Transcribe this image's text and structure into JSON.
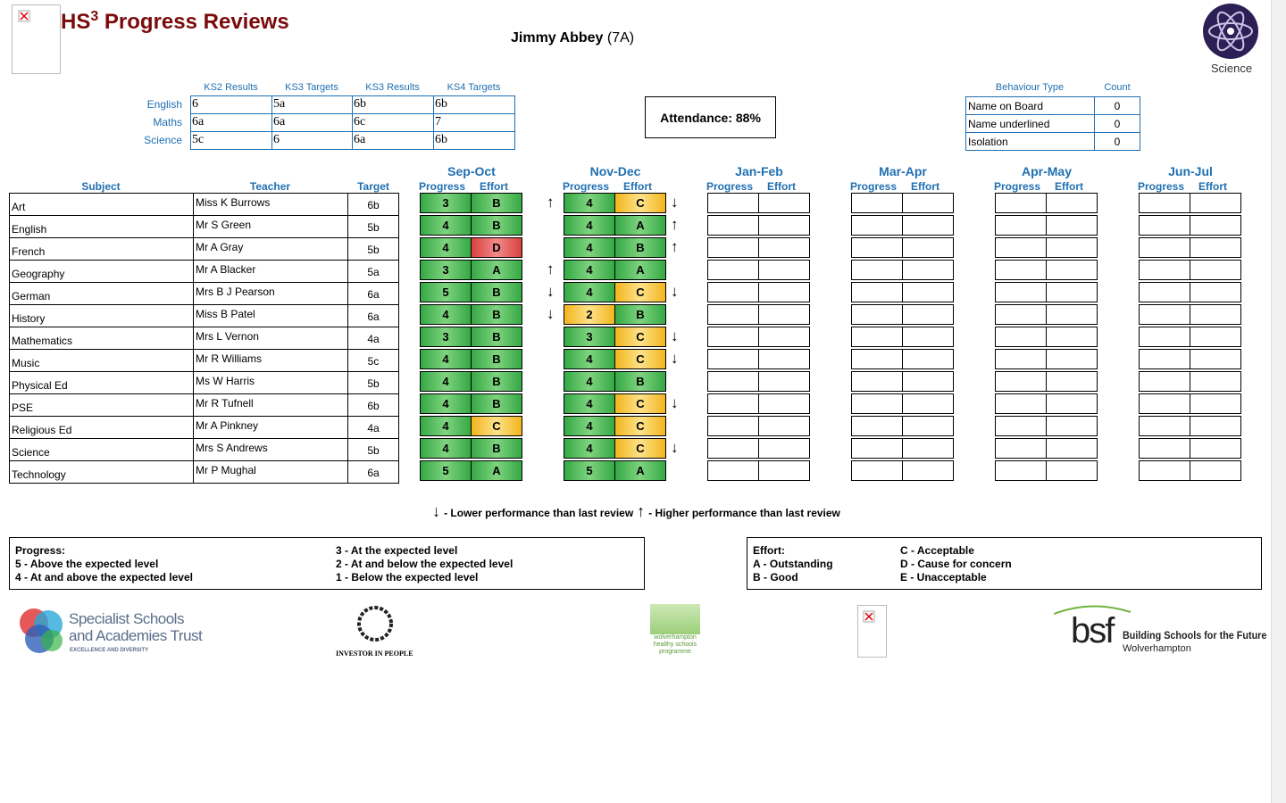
{
  "header": {
    "title": "HS",
    "title_sup": "3",
    "title_rest": "Progress Reviews",
    "student_name": "Jimmy Abbey",
    "student_form": "(7A)",
    "logo_label": "Science"
  },
  "key_stage": {
    "columns": [
      "KS2 Results",
      "KS3 Targets",
      "KS3 Results",
      "KS4 Targets"
    ],
    "rows": [
      {
        "subject": "English",
        "values": [
          "6",
          "5a",
          "6b",
          "6b"
        ]
      },
      {
        "subject": "Maths",
        "values": [
          "6a",
          "6a",
          "6c",
          "7"
        ]
      },
      {
        "subject": "Science",
        "values": [
          "5c",
          "6",
          "6a",
          "6b"
        ]
      }
    ]
  },
  "attendance": "Attendance: 88%",
  "behaviour": {
    "columns": [
      "Behaviour Type",
      "Count"
    ],
    "rows": [
      {
        "type": "Name on Board",
        "count": 0
      },
      {
        "type": "Name underlined",
        "count": 0
      },
      {
        "type": "Isolation",
        "count": 0
      }
    ]
  },
  "reviews": {
    "columns": [
      "Subject",
      "Teacher",
      "Target"
    ],
    "periods": [
      "Sep-Oct",
      "Nov-Dec",
      "Jan-Feb",
      "Mar-Apr",
      "Apr-May",
      "Jun-Jul"
    ],
    "sub_columns": [
      "Progress",
      "Effort"
    ],
    "rows": [
      {
        "subject": "Art",
        "teacher": "Miss K Burrows",
        "target": "6b",
        "results": [
          [
            {
              "value": 3,
              "color": "green"
            },
            {
              "value": "B",
              "color": "green"
            }
          ],
          [
            {
              "value": 4,
              "color": "green"
            },
            {
              "value": "C",
              "color": "amber"
            }
          ]
        ],
        "changes": [
          "↑",
          "↓"
        ]
      },
      {
        "subject": "English",
        "teacher": "Mr S Green",
        "target": "5b",
        "results": [
          [
            {
              "value": 4,
              "color": "green"
            },
            {
              "value": "B",
              "color": "green"
            }
          ],
          [
            {
              "value": 4,
              "color": "green"
            },
            {
              "value": "A",
              "color": "green"
            }
          ]
        ],
        "changes": [
          null,
          "↑"
        ]
      },
      {
        "subject": "French",
        "teacher": "Mr A Gray",
        "target": "5b",
        "results": [
          [
            {
              "value": 4,
              "color": "green"
            },
            {
              "value": "D",
              "color": "red"
            }
          ],
          [
            {
              "value": 4,
              "color": "green"
            },
            {
              "value": "B",
              "color": "green"
            }
          ]
        ],
        "changes": [
          null,
          "↑"
        ]
      },
      {
        "subject": "Geography",
        "teacher": "Mr A Blacker",
        "target": "5a",
        "results": [
          [
            {
              "value": 3,
              "color": "green"
            },
            {
              "value": "A",
              "color": "green"
            }
          ],
          [
            {
              "value": 4,
              "color": "green"
            },
            {
              "value": "A",
              "color": "green"
            }
          ]
        ],
        "changes": [
          "↑",
          null
        ]
      },
      {
        "subject": "German",
        "teacher": "Mrs B J Pearson",
        "target": "6a",
        "results": [
          [
            {
              "value": 5,
              "color": "green"
            },
            {
              "value": "B",
              "color": "green"
            }
          ],
          [
            {
              "value": 4,
              "color": "green"
            },
            {
              "value": "C",
              "color": "amber"
            }
          ]
        ],
        "changes": [
          "↓",
          "↓"
        ]
      },
      {
        "subject": "History",
        "teacher": "Miss B Patel",
        "target": "6a",
        "results": [
          [
            {
              "value": 4,
              "color": "green"
            },
            {
              "value": "B",
              "color": "green"
            }
          ],
          [
            {
              "value": 2,
              "color": "amber"
            },
            {
              "value": "B",
              "color": "green"
            }
          ]
        ],
        "changes": [
          "↓",
          null
        ]
      },
      {
        "subject": "Mathematics",
        "teacher": "Mrs L Vernon",
        "target": "4a",
        "results": [
          [
            {
              "value": 3,
              "color": "green"
            },
            {
              "value": "B",
              "color": "green"
            }
          ],
          [
            {
              "value": 3,
              "color": "green"
            },
            {
              "value": "C",
              "color": "amber"
            }
          ]
        ],
        "changes": [
          null,
          "↓"
        ]
      },
      {
        "subject": "Music",
        "teacher": "Mr R Williams",
        "target": "5c",
        "results": [
          [
            {
              "value": 4,
              "color": "green"
            },
            {
              "value": "B",
              "color": "green"
            }
          ],
          [
            {
              "value": 4,
              "color": "green"
            },
            {
              "value": "C",
              "color": "amber"
            }
          ]
        ],
        "changes": [
          null,
          "↓"
        ]
      },
      {
        "subject": "Physical Ed",
        "teacher": "Ms W Harris",
        "target": "5b",
        "results": [
          [
            {
              "value": 4,
              "color": "green"
            },
            {
              "value": "B",
              "color": "green"
            }
          ],
          [
            {
              "value": 4,
              "color": "green"
            },
            {
              "value": "B",
              "color": "green"
            }
          ]
        ],
        "changes": [
          null,
          null
        ]
      },
      {
        "subject": "PSE",
        "teacher": "Mr R Tufnell",
        "target": "6b",
        "results": [
          [
            {
              "value": 4,
              "color": "green"
            },
            {
              "value": "B",
              "color": "green"
            }
          ],
          [
            {
              "value": 4,
              "color": "green"
            },
            {
              "value": "C",
              "color": "amber"
            }
          ]
        ],
        "changes": [
          null,
          "↓"
        ]
      },
      {
        "subject": "Religious Ed",
        "teacher": "Mr A Pinkney",
        "target": "4a",
        "results": [
          [
            {
              "value": 4,
              "color": "green"
            },
            {
              "value": "C",
              "color": "amber"
            }
          ],
          [
            {
              "value": 4,
              "color": "green"
            },
            {
              "value": "C",
              "color": "amber"
            }
          ]
        ],
        "changes": [
          null,
          null
        ]
      },
      {
        "subject": "Science",
        "teacher": "Mrs S Andrews",
        "target": "5b",
        "results": [
          [
            {
              "value": 4,
              "color": "green"
            },
            {
              "value": "B",
              "color": "green"
            }
          ],
          [
            {
              "value": 4,
              "color": "green"
            },
            {
              "value": "C",
              "color": "amber"
            }
          ]
        ],
        "changes": [
          null,
          "↓"
        ]
      },
      {
        "subject": "Technology",
        "teacher": "Mr P Mughal",
        "target": "6a",
        "results": [
          [
            {
              "value": 5,
              "color": "green"
            },
            {
              "value": "A",
              "color": "green"
            }
          ],
          [
            {
              "value": 5,
              "color": "green"
            },
            {
              "value": "A",
              "color": "green"
            }
          ]
        ],
        "changes": [
          null,
          null
        ]
      }
    ]
  },
  "key": [
    {
      "symbol": "↓",
      "text": "- Lower performance than last review"
    },
    {
      "symbol": "↑",
      "text": "- Higher performance than last review"
    }
  ],
  "progress_key": {
    "title": "Progress:",
    "items": [
      "5 - Above the expected level",
      "4 - At and above the expected level",
      "3 - At the expected level",
      "2 - At and below the expected level",
      "1 - Below the expected level"
    ]
  },
  "effort_key": {
    "title": "Effort:",
    "items": [
      "A - Outstanding",
      "B - Good",
      "C - Acceptable",
      "D - Cause for concern",
      "E - Unacceptable"
    ]
  },
  "logos": {
    "ssat": [
      "Specialist Schools",
      "and Academies Trust",
      "EXCELLENCE AND DIVERSITY"
    ],
    "iip": "INVESTOR IN PEOPLE",
    "healthy": [
      "wolverhampton",
      "healthy schools",
      "programme"
    ],
    "bsf": {
      "mark": "bsf",
      "title": "Building Schools for the Future",
      "place": "Wolverhampton"
    }
  }
}
